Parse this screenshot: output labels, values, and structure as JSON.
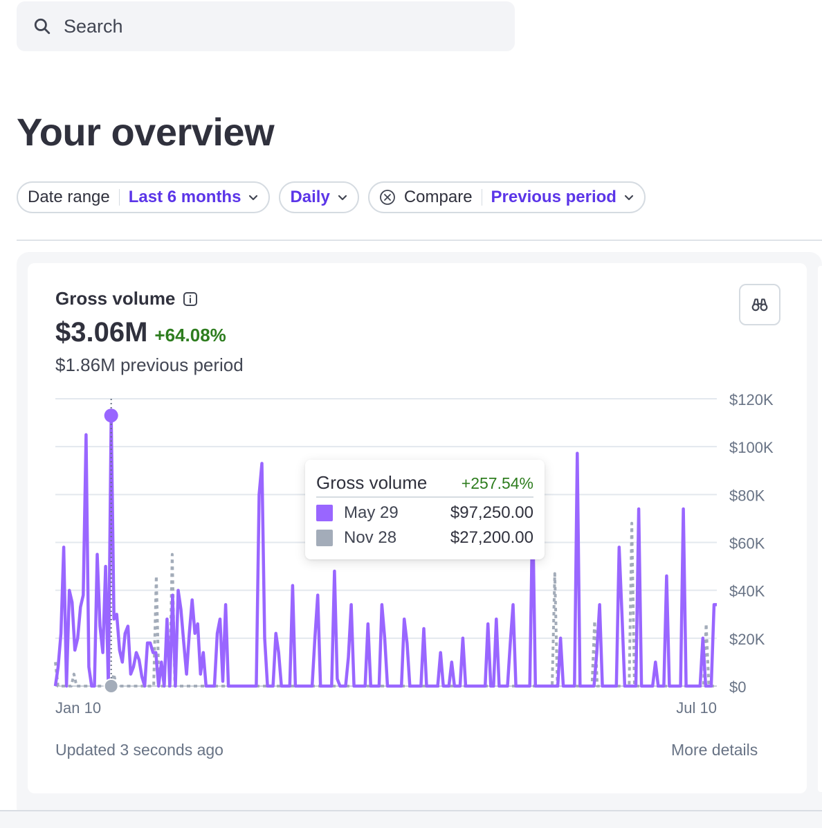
{
  "search": {
    "placeholder": "Search"
  },
  "page": {
    "title": "Your overview"
  },
  "filters": {
    "date_range": {
      "label": "Date range",
      "value": "Last 6 months"
    },
    "interval": {
      "value": "Daily"
    },
    "compare": {
      "label": "Compare",
      "value": "Previous period"
    }
  },
  "card": {
    "title": "Gross volume",
    "value": "$3.06M",
    "change": "+64.08%",
    "previous": "$1.86M previous period",
    "footer_updated": "Updated 3 seconds ago",
    "footer_link": "More details"
  },
  "tooltip": {
    "title": "Gross volume",
    "change": "+257.54%",
    "rows": [
      {
        "date": "May 29",
        "amount": "$97,250.00",
        "color": "#9966ff"
      },
      {
        "date": "Nov 28",
        "amount": "$27,200.00",
        "color": "#a3acb9"
      }
    ]
  },
  "colors": {
    "current": "#9966ff",
    "previous": "#a3acb9",
    "positive": "#2e7d1f",
    "accent": "#5b35e8"
  },
  "chart_data": {
    "type": "line",
    "y_ticks": [
      "$120K",
      "$100K",
      "$80K",
      "$60K",
      "$40K",
      "$20K",
      "$0"
    ],
    "y_tick_values": [
      120000,
      100000,
      80000,
      60000,
      40000,
      20000,
      0
    ],
    "ylim": [
      0,
      120000
    ],
    "x_start_label": "Jan 10",
    "x_end_label": "Jul 10",
    "highlight_date": "May 29",
    "series": [
      {
        "style": "solid",
        "color": "#9966ff",
        "values": [
          0,
          8000,
          22000,
          58000,
          0,
          40000,
          35000,
          15000,
          20000,
          33000,
          38000,
          105000,
          8000,
          0,
          0,
          55000,
          25000,
          14000,
          50000,
          0,
          113000,
          28000,
          30000,
          15000,
          10000,
          22000,
          25000,
          5000,
          8000,
          14000,
          11000,
          4000,
          0,
          18000,
          18000,
          14000,
          14000,
          0,
          10000,
          0,
          28000,
          0,
          38000,
          0,
          40000,
          32000,
          18000,
          5000,
          22000,
          36000,
          22000,
          26000,
          5000,
          14000,
          0,
          0,
          0,
          0,
          22000,
          28000,
          2000,
          34000,
          0,
          0,
          0,
          0,
          0,
          0,
          0,
          0,
          0,
          0,
          0,
          80000,
          93000,
          20000,
          0,
          0,
          0,
          22000,
          14000,
          0,
          0,
          0,
          0,
          42000,
          0,
          0,
          0,
          0,
          0,
          0,
          0,
          20000,
          38000,
          0,
          0,
          0,
          0,
          0,
          48000,
          3000,
          0,
          0,
          0,
          12000,
          34000,
          0,
          0,
          0,
          0,
          0,
          26000,
          0,
          0,
          0,
          0,
          34000,
          20000,
          0,
          0,
          0,
          0,
          0,
          0,
          28000,
          18000,
          0,
          0,
          0,
          0,
          0,
          24000,
          0,
          0,
          0,
          0,
          0,
          14000,
          0,
          0,
          0,
          10000,
          0,
          0,
          0,
          20000,
          0,
          0,
          0,
          0,
          0,
          0,
          0,
          0,
          26000,
          0,
          0,
          28000,
          0,
          0,
          0,
          0,
          18000,
          34000,
          0,
          0,
          0,
          0,
          0,
          0,
          75000,
          0,
          0,
          0,
          0,
          0,
          0,
          0,
          0,
          0,
          20000,
          0,
          0,
          0,
          0,
          0,
          97250,
          0,
          0,
          0,
          0,
          0,
          0,
          14000,
          34000,
          0,
          0,
          0,
          0,
          0,
          0,
          58000,
          30000,
          0,
          0,
          0,
          0,
          0,
          74000,
          0,
          0,
          0,
          0,
          0,
          10000,
          0,
          0,
          0,
          46000,
          0,
          0,
          0,
          0,
          0,
          74000,
          0,
          0,
          0,
          0,
          0,
          0,
          20000,
          0,
          0,
          0,
          34000,
          34000
        ]
      },
      {
        "style": "dashed",
        "color": "#a3acb9",
        "values": [
          10000,
          0,
          0,
          0,
          0,
          0,
          0,
          5000,
          0,
          0,
          0,
          0,
          0,
          0,
          0,
          0,
          0,
          0,
          0,
          0,
          0,
          0,
          5000,
          0,
          0,
          0,
          0,
          0,
          0,
          0,
          0,
          0,
          0,
          0,
          0,
          0,
          0,
          0,
          46000,
          0,
          0,
          0,
          0,
          0,
          55000,
          0,
          0,
          0,
          0,
          0,
          0,
          0,
          0,
          0,
          0,
          0,
          0,
          0,
          0,
          0,
          0,
          0,
          0,
          0,
          0,
          0,
          0,
          0,
          0,
          0,
          0,
          0,
          0,
          0,
          0,
          0,
          0,
          0,
          0,
          0,
          0,
          0,
          0,
          0,
          0,
          0,
          0,
          0,
          0,
          0,
          0,
          0,
          0,
          0,
          0,
          0,
          0,
          0,
          0,
          0,
          0,
          0,
          0,
          0,
          0,
          0,
          0,
          0,
          0,
          0,
          0,
          0,
          0,
          0,
          0,
          0,
          0,
          0,
          0,
          0,
          0,
          0,
          0,
          0,
          0,
          0,
          0,
          0,
          0,
          0,
          0,
          0,
          0,
          0,
          0,
          0,
          0,
          0,
          0,
          0,
          0,
          0,
          0,
          0,
          0,
          0,
          0,
          0,
          0,
          0,
          0,
          0,
          0,
          0,
          0,
          0,
          0,
          0,
          0,
          0,
          0,
          0,
          0,
          0,
          0,
          0,
          0,
          0,
          0,
          0,
          0,
          0,
          0,
          0,
          0,
          0,
          0,
          0,
          0,
          0,
          0,
          0,
          0,
          0,
          0,
          0,
          0,
          0,
          47000,
          0,
          0,
          0,
          0,
          0,
          0,
          0,
          0,
          0,
          0,
          0,
          0,
          0,
          0,
          27200,
          0,
          0,
          0,
          0,
          0,
          0,
          0,
          0,
          0,
          0,
          0,
          0,
          0,
          68000,
          0,
          0,
          0,
          0,
          0,
          0,
          0,
          0,
          0,
          0,
          0,
          0,
          0,
          0,
          0,
          0,
          0,
          0,
          0,
          0,
          0,
          0,
          0,
          0,
          0,
          0,
          0,
          26000,
          0,
          0,
          0,
          0
        ]
      }
    ]
  }
}
